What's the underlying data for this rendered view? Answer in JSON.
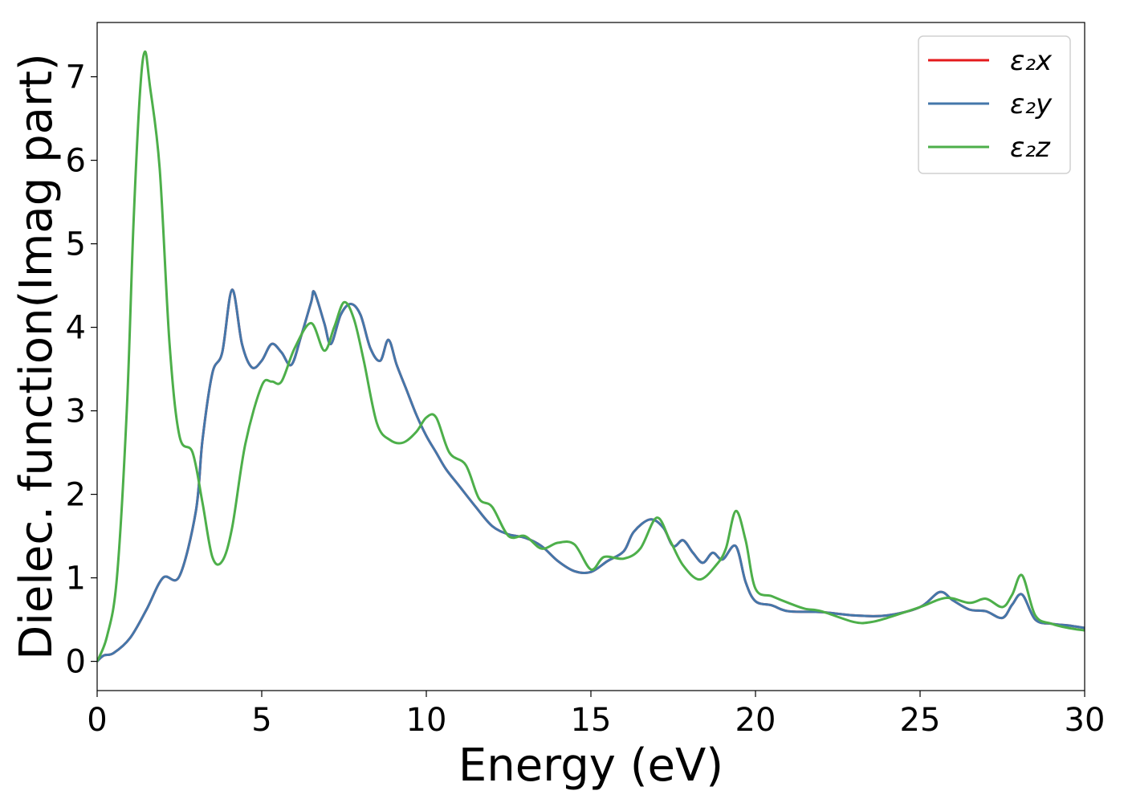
{
  "chart_data": {
    "type": "line",
    "xlabel": "Energy (eV)",
    "ylabel": "Dielec. function(Imag part)",
    "xlim": [
      0,
      30
    ],
    "ylim": [
      -0.35,
      7.65
    ],
    "xticks": [
      "0",
      "5",
      "10",
      "15",
      "20",
      "25",
      "30"
    ],
    "yticks": [
      "0",
      "1",
      "2",
      "3",
      "4",
      "5",
      "6",
      "7"
    ],
    "grid": false,
    "legend_position": "top-right",
    "series": [
      {
        "name": "ε₂x",
        "color": "#e41a1c",
        "x": [
          0,
          0.2,
          0.5,
          1.0,
          1.5,
          2.0,
          2.5,
          3.0,
          3.2,
          3.5,
          3.8,
          4.1,
          4.4,
          4.7,
          5.0,
          5.3,
          5.6,
          5.9,
          6.2,
          6.5,
          6.6,
          6.9,
          7.1,
          7.4,
          7.7,
          8.0,
          8.3,
          8.6,
          8.85,
          9.1,
          9.4,
          9.7,
          10.0,
          10.3,
          10.6,
          11.0,
          11.5,
          12.0,
          12.5,
          13.0,
          13.5,
          14.0,
          14.5,
          15.0,
          15.5,
          16.0,
          16.3,
          16.8,
          17.2,
          17.5,
          17.8,
          18.1,
          18.4,
          18.7,
          19.0,
          19.4,
          19.7,
          20.0,
          20.5,
          21.0,
          22.0,
          23.0,
          24.0,
          25.0,
          25.6,
          26.0,
          26.5,
          27.0,
          27.5,
          27.8,
          28.1,
          28.5,
          29.0,
          29.5,
          30.0
        ],
        "values": [
          0.0,
          0.07,
          0.1,
          0.28,
          0.62,
          1.0,
          1.02,
          1.8,
          2.65,
          3.45,
          3.7,
          4.45,
          3.8,
          3.52,
          3.6,
          3.8,
          3.7,
          3.55,
          3.9,
          4.3,
          4.42,
          4.05,
          3.8,
          4.15,
          4.28,
          4.15,
          3.75,
          3.6,
          3.85,
          3.55,
          3.25,
          2.95,
          2.7,
          2.5,
          2.3,
          2.1,
          1.85,
          1.62,
          1.52,
          1.48,
          1.38,
          1.2,
          1.08,
          1.07,
          1.2,
          1.32,
          1.55,
          1.7,
          1.6,
          1.38,
          1.45,
          1.3,
          1.18,
          1.3,
          1.22,
          1.38,
          0.95,
          0.72,
          0.67,
          0.6,
          0.59,
          0.55,
          0.55,
          0.65,
          0.83,
          0.73,
          0.62,
          0.6,
          0.52,
          0.68,
          0.8,
          0.5,
          0.45,
          0.43,
          0.4
        ]
      },
      {
        "name": "ε₂y",
        "color": "#4477aa",
        "x": [
          0,
          0.2,
          0.5,
          1.0,
          1.5,
          2.0,
          2.5,
          3.0,
          3.2,
          3.5,
          3.8,
          4.1,
          4.4,
          4.7,
          5.0,
          5.3,
          5.6,
          5.9,
          6.2,
          6.5,
          6.6,
          6.9,
          7.1,
          7.4,
          7.7,
          8.0,
          8.3,
          8.6,
          8.85,
          9.1,
          9.4,
          9.7,
          10.0,
          10.3,
          10.6,
          11.0,
          11.5,
          12.0,
          12.5,
          13.0,
          13.5,
          14.0,
          14.5,
          15.0,
          15.5,
          16.0,
          16.3,
          16.8,
          17.2,
          17.5,
          17.8,
          18.1,
          18.4,
          18.7,
          19.0,
          19.4,
          19.7,
          20.0,
          20.5,
          21.0,
          22.0,
          23.0,
          24.0,
          25.0,
          25.6,
          26.0,
          26.5,
          27.0,
          27.5,
          27.8,
          28.1,
          28.5,
          29.0,
          29.5,
          30.0
        ],
        "values": [
          0.0,
          0.07,
          0.1,
          0.28,
          0.62,
          1.0,
          1.02,
          1.8,
          2.65,
          3.45,
          3.7,
          4.45,
          3.8,
          3.52,
          3.6,
          3.8,
          3.7,
          3.55,
          3.9,
          4.3,
          4.42,
          4.05,
          3.8,
          4.15,
          4.28,
          4.15,
          3.75,
          3.6,
          3.85,
          3.55,
          3.25,
          2.95,
          2.7,
          2.5,
          2.3,
          2.1,
          1.85,
          1.62,
          1.52,
          1.48,
          1.38,
          1.2,
          1.08,
          1.07,
          1.2,
          1.32,
          1.55,
          1.7,
          1.6,
          1.38,
          1.45,
          1.3,
          1.18,
          1.3,
          1.22,
          1.38,
          0.95,
          0.72,
          0.67,
          0.6,
          0.59,
          0.55,
          0.55,
          0.65,
          0.83,
          0.73,
          0.62,
          0.6,
          0.52,
          0.68,
          0.8,
          0.5,
          0.45,
          0.43,
          0.4
        ]
      },
      {
        "name": "ε₂z",
        "color": "#4daf4a",
        "x": [
          0,
          0.3,
          0.6,
          0.9,
          1.1,
          1.3,
          1.45,
          1.6,
          1.9,
          2.2,
          2.5,
          2.9,
          3.2,
          3.5,
          3.8,
          4.1,
          4.5,
          5.0,
          5.3,
          5.6,
          6.0,
          6.5,
          6.9,
          7.2,
          7.5,
          7.8,
          8.1,
          8.5,
          8.9,
          9.3,
          9.7,
          10.0,
          10.3,
          10.7,
          11.2,
          11.6,
          12.0,
          12.5,
          13.0,
          13.5,
          14.0,
          14.5,
          15.0,
          15.4,
          16.0,
          16.5,
          17.0,
          17.4,
          17.8,
          18.3,
          18.8,
          19.1,
          19.4,
          19.7,
          20.0,
          20.5,
          21.0,
          21.5,
          22.0,
          23.0,
          23.5,
          24.0,
          25.0,
          25.8,
          26.5,
          27.0,
          27.5,
          27.8,
          28.1,
          28.5,
          29.0,
          29.5,
          30.0
        ],
        "values": [
          0.0,
          0.3,
          1.0,
          3.0,
          5.2,
          6.8,
          7.3,
          6.9,
          5.9,
          3.8,
          2.7,
          2.5,
          1.9,
          1.25,
          1.2,
          1.6,
          2.6,
          3.3,
          3.35,
          3.35,
          3.75,
          4.05,
          3.72,
          4.0,
          4.3,
          4.1,
          3.6,
          2.85,
          2.65,
          2.62,
          2.75,
          2.92,
          2.92,
          2.5,
          2.35,
          1.95,
          1.85,
          1.5,
          1.5,
          1.35,
          1.42,
          1.4,
          1.1,
          1.25,
          1.23,
          1.35,
          1.72,
          1.45,
          1.15,
          0.98,
          1.15,
          1.35,
          1.8,
          1.45,
          0.87,
          0.78,
          0.7,
          0.63,
          0.6,
          0.47,
          0.47,
          0.52,
          0.65,
          0.76,
          0.7,
          0.75,
          0.65,
          0.8,
          1.03,
          0.55,
          0.45,
          0.4,
          0.37
        ]
      }
    ]
  }
}
